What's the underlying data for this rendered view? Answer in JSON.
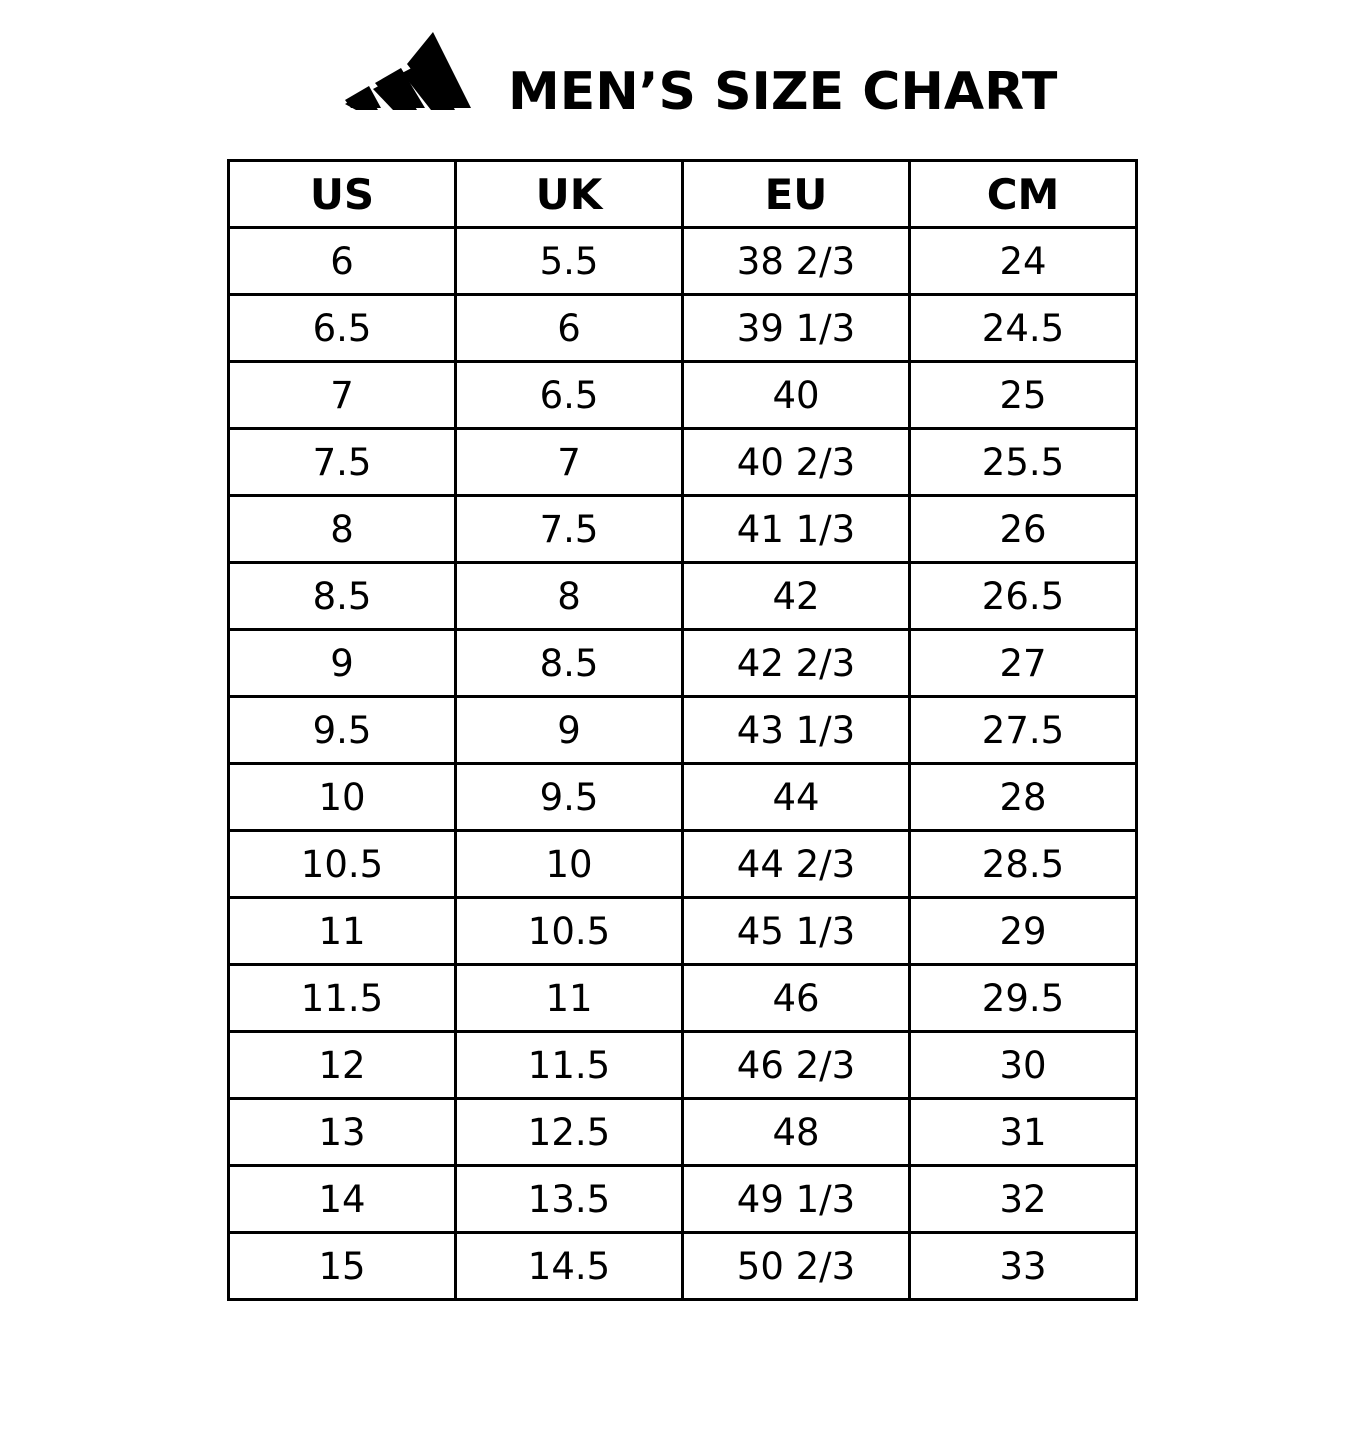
{
  "header": {
    "logo": "adidas three-bars logo",
    "title": "MEN’S SIZE CHART"
  },
  "table": {
    "columns": [
      "US",
      "UK",
      "EU",
      "CM"
    ],
    "rows": [
      [
        "6",
        "5.5",
        "38 2/3",
        "24"
      ],
      [
        "6.5",
        "6",
        "39 1/3",
        "24.5"
      ],
      [
        "7",
        "6.5",
        "40",
        "25"
      ],
      [
        "7.5",
        "7",
        "40 2/3",
        "25.5"
      ],
      [
        "8",
        "7.5",
        "41 1/3",
        "26"
      ],
      [
        "8.5",
        "8",
        "42",
        "26.5"
      ],
      [
        "9",
        "8.5",
        "42 2/3",
        "27"
      ],
      [
        "9.5",
        "9",
        "43 1/3",
        "27.5"
      ],
      [
        "10",
        "9.5",
        "44",
        "28"
      ],
      [
        "10.5",
        "10",
        "44 2/3",
        "28.5"
      ],
      [
        "11",
        "10.5",
        "45 1/3",
        "29"
      ],
      [
        "11.5",
        "11",
        "46",
        "29.5"
      ],
      [
        "12",
        "11.5",
        "46 2/3",
        "30"
      ],
      [
        "13",
        "12.5",
        "48",
        "31"
      ],
      [
        "14",
        "13.5",
        "49 1/3",
        "32"
      ],
      [
        "15",
        "14.5",
        "50 2/3",
        "33"
      ]
    ]
  }
}
